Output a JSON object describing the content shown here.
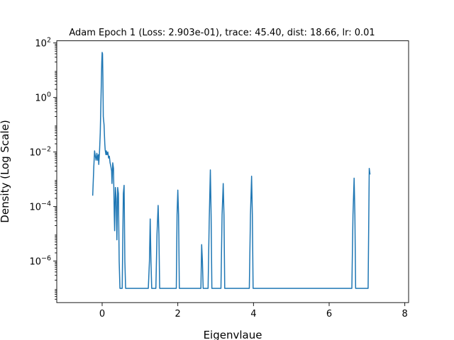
{
  "chart_data": {
    "type": "line",
    "title": "Adam Epoch 1 (Loss: 2.903e-01), trace: 45.40, dist: 18.66, lr: 0.01",
    "xlabel": "Eigenvlaue",
    "ylabel": "Density (Log Scale)",
    "xlim": [
      -1.2,
      8.1
    ],
    "ylim": [
      3e-08,
      120
    ],
    "yscale": "log",
    "grid": false,
    "legend": "none",
    "x_ticks": [
      0,
      2,
      4,
      6,
      8
    ],
    "x_tick_labels": [
      "0",
      "2",
      "4",
      "6",
      "8"
    ],
    "y_ticks": [
      1e-06,
      0.0001,
      0.01,
      1,
      100
    ],
    "y_tick_labels": [
      {
        "base": "10",
        "exp": "−6"
      },
      {
        "base": "10",
        "exp": "−4"
      },
      {
        "base": "10",
        "exp": "−2"
      },
      {
        "base": "10",
        "exp": "0"
      },
      {
        "base": "10",
        "exp": "2"
      }
    ],
    "series": [
      {
        "color": "#1f77b4",
        "points": [
          [
            -0.25,
            0.00025
          ],
          [
            -0.22,
            0.003
          ],
          [
            -0.2,
            0.011
          ],
          [
            -0.18,
            0.007
          ],
          [
            -0.16,
            0.005
          ],
          [
            -0.14,
            0.009
          ],
          [
            -0.12,
            0.005
          ],
          [
            -0.1,
            0.008
          ],
          [
            -0.09,
            0.0035
          ],
          [
            -0.07,
            0.01
          ],
          [
            -0.05,
            0.05
          ],
          [
            -0.03,
            1.0
          ],
          [
            -0.01,
            20
          ],
          [
            0.0,
            45
          ],
          [
            0.01,
            40
          ],
          [
            0.02,
            5
          ],
          [
            0.03,
            0.2
          ],
          [
            0.05,
            0.1
          ],
          [
            0.07,
            0.02
          ],
          [
            0.08,
            0.012
          ],
          [
            0.1,
            0.008
          ],
          [
            0.11,
            0.011
          ],
          [
            0.13,
            0.008
          ],
          [
            0.15,
            0.01
          ],
          [
            0.17,
            0.006
          ],
          [
            0.19,
            0.007
          ],
          [
            0.21,
            0.004
          ],
          [
            0.23,
            0.003
          ],
          [
            0.25,
            0.002
          ],
          [
            0.26,
            0.0007
          ],
          [
            0.28,
            0.004
          ],
          [
            0.3,
            0.0025
          ],
          [
            0.32,
            5e-05
          ],
          [
            0.33,
            1.3e-05
          ],
          [
            0.35,
            0.0005
          ],
          [
            0.37,
            0.0002
          ],
          [
            0.39,
            6e-06
          ],
          [
            0.41,
            0.0005
          ],
          [
            0.43,
            0.0003
          ],
          [
            0.45,
            1e-06
          ],
          [
            0.47,
            1e-07
          ],
          [
            0.5,
            1e-07
          ],
          [
            0.53,
            1e-07
          ],
          [
            0.56,
            0.0003
          ],
          [
            0.58,
            0.0006
          ],
          [
            0.6,
            1e-06
          ],
          [
            0.62,
            1e-07
          ],
          [
            1.22,
            1e-07
          ],
          [
            1.25,
            1e-06
          ],
          [
            1.27,
            3.5e-05
          ],
          [
            1.29,
            1e-06
          ],
          [
            1.31,
            1e-07
          ],
          [
            1.42,
            1e-07
          ],
          [
            1.45,
            1e-05
          ],
          [
            1.48,
            0.00011
          ],
          [
            1.5,
            1e-05
          ],
          [
            1.52,
            1e-07
          ],
          [
            1.96,
            1e-07
          ],
          [
            1.98,
            5e-05
          ],
          [
            2.0,
            0.0004
          ],
          [
            2.02,
            5e-05
          ],
          [
            2.04,
            1e-07
          ],
          [
            2.61,
            1e-07
          ],
          [
            2.63,
            4e-06
          ],
          [
            2.65,
            1e-06
          ],
          [
            2.67,
            1e-07
          ],
          [
            2.8,
            1e-07
          ],
          [
            2.83,
            3e-05
          ],
          [
            2.86,
            0.0022
          ],
          [
            2.88,
            5e-05
          ],
          [
            2.9,
            1e-07
          ],
          [
            3.14,
            1e-07
          ],
          [
            3.17,
            5e-05
          ],
          [
            3.2,
            0.0007
          ],
          [
            3.22,
            5e-05
          ],
          [
            3.24,
            1e-07
          ],
          [
            3.89,
            1e-07
          ],
          [
            3.92,
            5e-05
          ],
          [
            3.95,
            0.0013
          ],
          [
            3.97,
            5e-05
          ],
          [
            3.99,
            1e-07
          ],
          [
            6.6,
            1e-07
          ],
          [
            6.63,
            5e-05
          ],
          [
            6.66,
            0.0011
          ],
          [
            6.68,
            5e-05
          ],
          [
            6.7,
            1e-07
          ],
          [
            7.0,
            1e-07
          ],
          [
            7.03,
            1e-07
          ],
          [
            7.06,
            0.0025
          ],
          [
            7.08,
            0.0015
          ]
        ]
      }
    ]
  }
}
